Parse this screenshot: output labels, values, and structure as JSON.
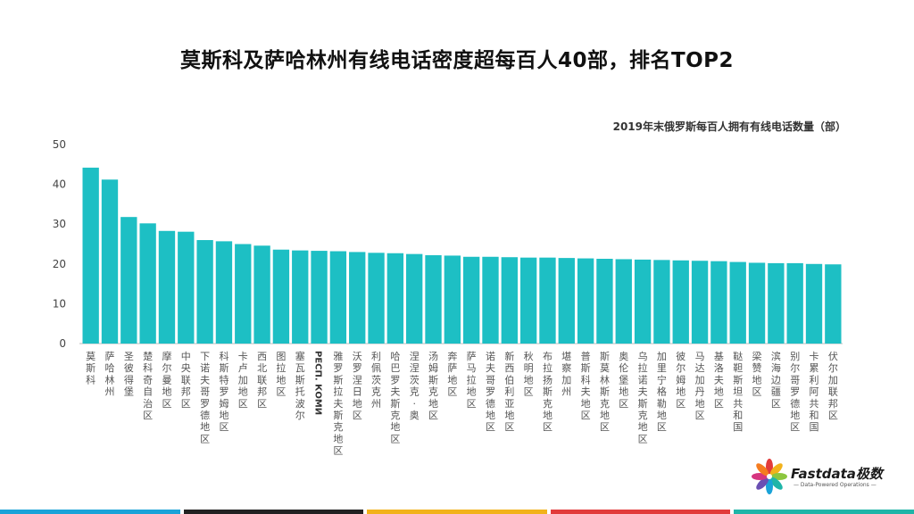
{
  "title": "莫斯科及萨哈林州有线电话密度超每百人40部，排名TOP2",
  "brand": {
    "name": "Fastdata极数",
    "tagline": "— Data-Powered Operations —"
  },
  "bottom_bar_colors": [
    "#1aa3d8",
    "#222222",
    "#f2b21b",
    "#e23b3b",
    "#1fb5a8"
  ],
  "chart_data": {
    "type": "bar",
    "title": "2019年末俄罗斯每百人拥有有线电话数量（部）",
    "ylim": [
      0,
      50
    ],
    "yticks": [
      0,
      10,
      20,
      30,
      40,
      50
    ],
    "bar_color": "#1dbfc4",
    "categories": [
      "莫斯科",
      "萨哈林州",
      "圣彼得堡",
      "楚科奇自治区",
      "摩尔曼地区",
      "中央联邦区",
      "下诺夫哥罗德地区",
      "科斯特罗姆地区",
      "卡卢加地区",
      "西北联邦区",
      "图拉地区",
      "塞瓦斯托波尔",
      "РЕСП. КОМИ",
      "雅罗斯拉夫斯克地区",
      "沃罗涅日地区",
      "利佩茨克州",
      "哈巴罗夫斯克地区",
      "涅涅茨克·奥",
      "汤姆斯克地区",
      "奔萨地区",
      "萨马拉地区",
      "诺夫哥罗德地区",
      "新西伯利亚地区",
      "秋明地区",
      "布拉扬斯克地区",
      "堪察加州",
      "普斯科夫地区",
      "斯莫林斯克地区",
      "奥伦堡地区",
      "乌拉诺夫斯克地区",
      "加里宁格勒地区",
      "彼尔姆地区",
      "马达加丹地区",
      "基洛夫地区",
      "鞑靼斯坦共和国",
      "梁赞地区",
      "滨海边疆区",
      "别尔哥罗德地区",
      "卡累利阿共和国",
      "伏尔加联邦区"
    ],
    "values": [
      44.2,
      41.2,
      31.8,
      30.2,
      28.3,
      28.1,
      26.0,
      25.7,
      25.0,
      24.6,
      23.6,
      23.4,
      23.3,
      23.2,
      23.0,
      22.8,
      22.7,
      22.5,
      22.2,
      22.1,
      21.8,
      21.8,
      21.7,
      21.6,
      21.6,
      21.5,
      21.4,
      21.3,
      21.2,
      21.1,
      21.0,
      20.9,
      20.8,
      20.7,
      20.5,
      20.3,
      20.2,
      20.2,
      20.0,
      19.9
    ]
  }
}
